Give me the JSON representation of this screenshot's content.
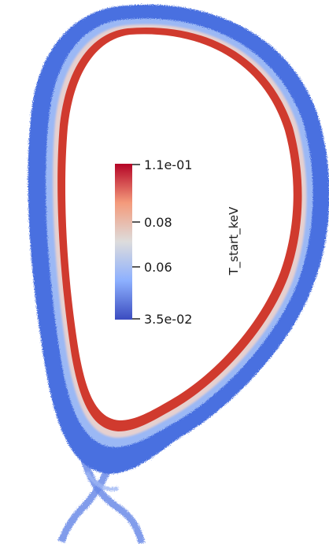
{
  "colorbar": {
    "title": "T_start_keV",
    "max_label": "1.1e-01",
    "min_label": "3.5e-02",
    "ticks": [
      {
        "label": "0.08",
        "value": 0.08
      },
      {
        "label": "0.06",
        "value": 0.06
      }
    ],
    "range": [
      0.035,
      0.11
    ],
    "colormap": [
      "#3b4cc0",
      "#8db0fe",
      "#dddcdc",
      "#f49a7b",
      "#b40426"
    ]
  },
  "colors": {
    "outer_plasma": "#4a6fe0",
    "mid_plasma": "#9bb8f5",
    "edge_plasma": "#d03a2e"
  }
}
